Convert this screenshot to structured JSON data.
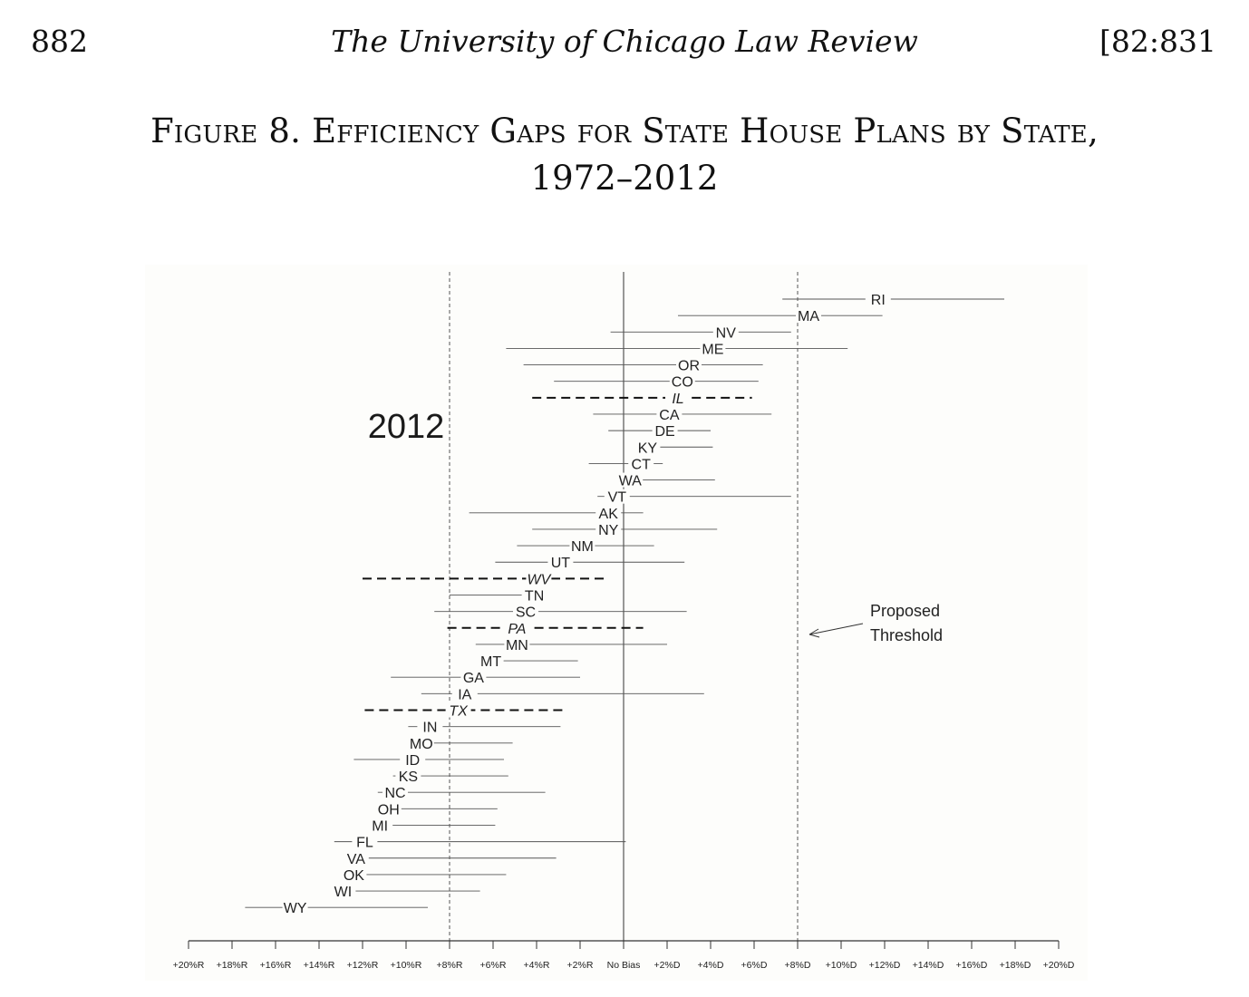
{
  "header": {
    "page_number": "882",
    "journal_title": "The University of Chicago Law Review",
    "citation": "[82:831"
  },
  "figure": {
    "title_line1": "Figure 8.  Efficiency Gaps for State House Plans by State,",
    "title_line2": "1972–2012"
  },
  "chart_data": {
    "type": "scatter",
    "title": "Efficiency Gaps for State House Plans by State, 1972–2012",
    "inset_label": "2012",
    "xlim": [
      -20,
      20
    ],
    "x_ticks": [
      {
        "v": -20,
        "label": "+20%R"
      },
      {
        "v": -18,
        "label": "+18%R"
      },
      {
        "v": -16,
        "label": "+16%R"
      },
      {
        "v": -14,
        "label": "+14%R"
      },
      {
        "v": -12,
        "label": "+12%R"
      },
      {
        "v": -10,
        "label": "+10%R"
      },
      {
        "v": -8,
        "label": "+8%R"
      },
      {
        "v": -6,
        "label": "+6%R"
      },
      {
        "v": -4,
        "label": "+4%R"
      },
      {
        "v": -2,
        "label": "+2%R"
      },
      {
        "v": 0,
        "label": "No Bias"
      },
      {
        "v": 2,
        "label": "+2%D"
      },
      {
        "v": 4,
        "label": "+4%D"
      },
      {
        "v": 6,
        "label": "+6%D"
      },
      {
        "v": 8,
        "label": "+8%D"
      },
      {
        "v": 10,
        "label": "+10%D"
      },
      {
        "v": 12,
        "label": "+12%D"
      },
      {
        "v": 14,
        "label": "+14%D"
      },
      {
        "v": 16,
        "label": "+16%D"
      },
      {
        "v": 18,
        "label": "+18%D"
      },
      {
        "v": 20,
        "label": "+20%D"
      }
    ],
    "thresholds": [
      -8,
      8
    ],
    "annotation": {
      "line1": "Proposed",
      "line2": "Threshold"
    },
    "states": [
      {
        "state": "RI",
        "value": 11.7,
        "low": 7.3,
        "high": 17.5,
        "italic": false
      },
      {
        "state": "MA",
        "value": 8.5,
        "low": 2.5,
        "high": 11.9,
        "italic": false
      },
      {
        "state": "NV",
        "value": 4.7,
        "low": -0.6,
        "high": 7.7,
        "italic": false
      },
      {
        "state": "ME",
        "value": 4.1,
        "low": -5.4,
        "high": 10.3,
        "italic": false
      },
      {
        "state": "OR",
        "value": 3.0,
        "low": -4.6,
        "high": 6.4,
        "italic": false
      },
      {
        "state": "CO",
        "value": 2.7,
        "low": -3.2,
        "high": 6.2,
        "italic": false
      },
      {
        "state": "IL",
        "value": 2.5,
        "low": -4.2,
        "high": 5.9,
        "italic": true
      },
      {
        "state": "CA",
        "value": 2.1,
        "low": -1.4,
        "high": 6.8,
        "italic": false
      },
      {
        "state": "DE",
        "value": 1.9,
        "low": -0.7,
        "high": 4.0,
        "italic": false
      },
      {
        "state": "KY",
        "value": 1.1,
        "low": 0.6,
        "high": 4.1,
        "italic": false
      },
      {
        "state": "CT",
        "value": 0.8,
        "low": -1.6,
        "high": 1.8,
        "italic": false
      },
      {
        "state": "WA",
        "value": 0.3,
        "low": 0.3,
        "high": 4.2,
        "italic": false
      },
      {
        "state": "VT",
        "value": -0.3,
        "low": -1.2,
        "high": 7.7,
        "italic": false
      },
      {
        "state": "AK",
        "value": -0.7,
        "low": -7.1,
        "high": 0.9,
        "italic": false
      },
      {
        "state": "NY",
        "value": -0.7,
        "low": -4.2,
        "high": 4.3,
        "italic": false
      },
      {
        "state": "NM",
        "value": -1.9,
        "low": -4.9,
        "high": 1.4,
        "italic": false
      },
      {
        "state": "UT",
        "value": -2.9,
        "low": -5.9,
        "high": 2.8,
        "italic": false
      },
      {
        "state": "WV",
        "value": -3.9,
        "low": -12.0,
        "high": -0.9,
        "italic": true
      },
      {
        "state": "TN",
        "value": -4.1,
        "low": -8.0,
        "high": -4.1,
        "italic": false
      },
      {
        "state": "SC",
        "value": -4.5,
        "low": -8.7,
        "high": 2.9,
        "italic": false
      },
      {
        "state": "PA",
        "value": -4.9,
        "low": -8.1,
        "high": 0.9,
        "italic": true
      },
      {
        "state": "MN",
        "value": -4.9,
        "low": -6.8,
        "high": 2.0,
        "italic": false
      },
      {
        "state": "MT",
        "value": -6.1,
        "low": -6.3,
        "high": -2.1,
        "italic": false
      },
      {
        "state": "GA",
        "value": -6.9,
        "low": -10.7,
        "high": -2.0,
        "italic": false
      },
      {
        "state": "IA",
        "value": -7.3,
        "low": -9.3,
        "high": 3.7,
        "italic": false
      },
      {
        "state": "TX",
        "value": -7.6,
        "low": -11.9,
        "high": -2.7,
        "italic": true
      },
      {
        "state": "IN",
        "value": -8.9,
        "low": -9.9,
        "high": -2.9,
        "italic": false
      },
      {
        "state": "MO",
        "value": -9.3,
        "low": -9.3,
        "high": -5.1,
        "italic": false
      },
      {
        "state": "ID",
        "value": -9.7,
        "low": -12.4,
        "high": -5.5,
        "italic": false
      },
      {
        "state": "KS",
        "value": -9.9,
        "low": -10.6,
        "high": -5.3,
        "italic": false
      },
      {
        "state": "NC",
        "value": -10.5,
        "low": -11.3,
        "high": -3.6,
        "italic": false
      },
      {
        "state": "OH",
        "value": -10.8,
        "low": -11.3,
        "high": -5.8,
        "italic": false
      },
      {
        "state": "MI",
        "value": -11.2,
        "low": -11.2,
        "high": -5.9,
        "italic": false
      },
      {
        "state": "FL",
        "value": -11.9,
        "low": -13.3,
        "high": 0.1,
        "italic": false
      },
      {
        "state": "VA",
        "value": -12.3,
        "low": -12.3,
        "high": -3.1,
        "italic": false
      },
      {
        "state": "OK",
        "value": -12.4,
        "low": -12.3,
        "high": -5.4,
        "italic": false
      },
      {
        "state": "WI",
        "value": -12.9,
        "low": -12.9,
        "high": -6.6,
        "italic": false
      },
      {
        "state": "WY",
        "value": -15.1,
        "low": -17.4,
        "high": -9.0,
        "italic": false
      }
    ],
    "colors": {
      "line": "#555555",
      "text": "#222222",
      "background": "#fdfdfb"
    }
  }
}
